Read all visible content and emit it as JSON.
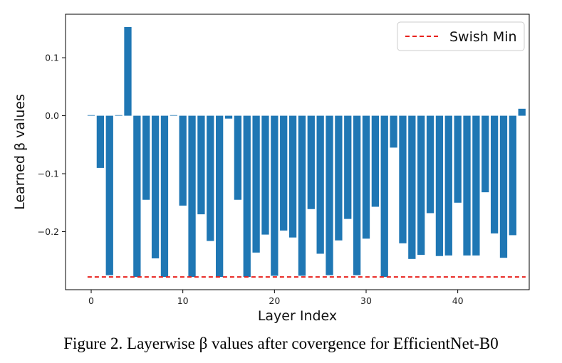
{
  "chart_data": {
    "type": "bar",
    "xlabel": "Layer Index",
    "ylabel": "Learned β values",
    "xlim": [
      -2.8,
      47.8
    ],
    "ylim": [
      -0.3,
      0.175
    ],
    "xticks": [
      0,
      10,
      20,
      30,
      40
    ],
    "yticks": [
      -0.2,
      -0.1,
      0.0,
      0.1
    ],
    "ytick_labels": [
      "−0.2",
      "−0.1",
      "0.0",
      "0.1"
    ],
    "grid": false,
    "legend_position": "top-right",
    "bar_color": "#1f77b4",
    "x": [
      0,
      1,
      2,
      3,
      4,
      5,
      6,
      7,
      8,
      9,
      10,
      11,
      12,
      13,
      14,
      15,
      16,
      17,
      18,
      19,
      20,
      21,
      22,
      23,
      24,
      25,
      26,
      27,
      28,
      29,
      30,
      31,
      32,
      33,
      34,
      35,
      36,
      37,
      38,
      39,
      40,
      41,
      42,
      43,
      44,
      45,
      46,
      47
    ],
    "values": [
      0.001,
      -0.09,
      -0.275,
      0.0,
      0.153,
      -0.278,
      -0.145,
      -0.246,
      -0.278,
      0.0,
      -0.155,
      -0.278,
      -0.17,
      -0.216,
      -0.278,
      -0.005,
      -0.145,
      -0.278,
      -0.236,
      -0.205,
      -0.276,
      -0.198,
      -0.21,
      -0.276,
      -0.161,
      -0.238,
      -0.275,
      -0.215,
      -0.178,
      -0.275,
      -0.212,
      -0.157,
      -0.278,
      -0.055,
      -0.22,
      -0.247,
      -0.24,
      -0.168,
      -0.242,
      -0.241,
      -0.15,
      -0.241,
      -0.241,
      -0.132,
      -0.203,
      -0.245,
      -0.206,
      0.012
    ],
    "reference_line": {
      "name": "Swish Min",
      "value": -0.278,
      "color": "#e8211c",
      "style": "dashed"
    }
  },
  "caption": "Figure 2. Layerwise β values after covergence for EfficientNet-B0"
}
